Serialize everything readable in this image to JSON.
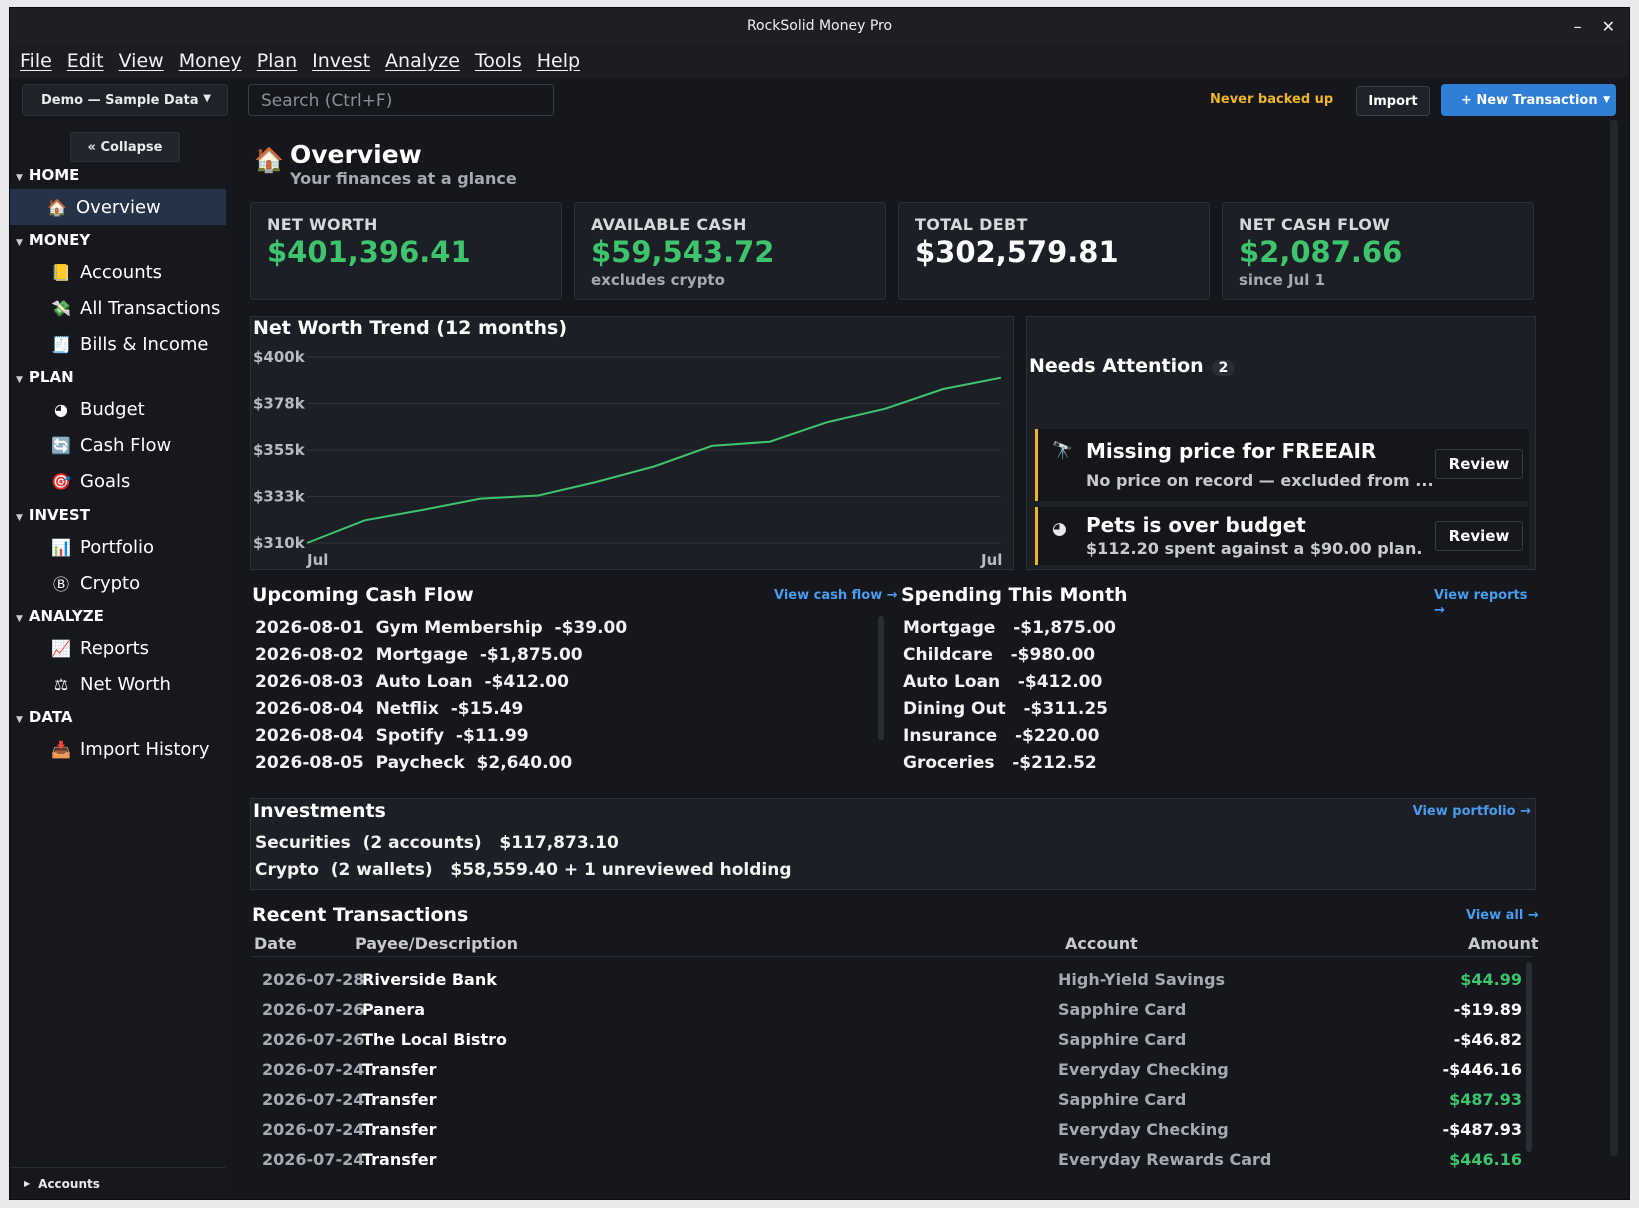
{
  "window": {
    "title": "RockSolid Money Pro",
    "minimize": "–",
    "close": "✕"
  },
  "menu": [
    "File",
    "Edit",
    "View",
    "Money",
    "Plan",
    "Invest",
    "Analyze",
    "Tools",
    "Help"
  ],
  "toolbar": {
    "profile": "Demo — Sample Data",
    "search_placeholder": "Search  (Ctrl+F)",
    "backup_status": "Never backed up",
    "import_label": "Import",
    "new_transaction_label": "+ New Transaction"
  },
  "sidebar": {
    "collapse_label": "«  Collapse",
    "sections": {
      "home": "HOME",
      "money": "MONEY",
      "plan": "PLAN",
      "invest": "INVEST",
      "analyze": "ANALYZE",
      "data": "DATA"
    },
    "items": {
      "overview": "Overview",
      "accounts": "Accounts",
      "all_transactions": "All Transactions",
      "bills_income": "Bills & Income",
      "budget": "Budget",
      "cash_flow": "Cash Flow",
      "goals": "Goals",
      "portfolio": "Portfolio",
      "crypto": "Crypto",
      "reports": "Reports",
      "net_worth": "Net Worth",
      "import_history": "Import History"
    },
    "footer": "Accounts"
  },
  "header": {
    "title": "Overview",
    "subtitle": "Your finances at a glance"
  },
  "kpis": [
    {
      "label": "NET WORTH",
      "value": "$401,396.41",
      "sub": ""
    },
    {
      "label": "AVAILABLE CASH",
      "value": "$59,543.72",
      "sub": "excludes crypto"
    },
    {
      "label": "TOTAL DEBT",
      "value": "$302,579.81",
      "sub": ""
    },
    {
      "label": "NET CASH FLOW",
      "value": "$2,087.66",
      "sub": "since Jul 1"
    }
  ],
  "chart_data": {
    "type": "line",
    "title": "Net Worth Trend (12 months)",
    "y_ticks": [
      "$400k",
      "$378k",
      "$355k",
      "$333k",
      "$310k"
    ],
    "x_ticks": [
      "Jul",
      "Jul"
    ],
    "ylim": [
      310000,
      400000
    ],
    "series": [
      {
        "values": [
          310000,
          321000,
          326000,
          331500,
          333000,
          339500,
          347000,
          357000,
          359000,
          368500,
          375000,
          384500,
          390000
        ]
      }
    ],
    "color": "#3ec46d"
  },
  "attention": {
    "title": "Needs Attention",
    "count": "2",
    "alerts": [
      {
        "title": "Missing price for FREEAIR",
        "desc": "No price on record — excluded from ...",
        "action": "Review"
      },
      {
        "title": "Pets is over budget",
        "desc": "$112.20 spent against a $90.00 plan.",
        "action": "Review"
      }
    ]
  },
  "upcoming": {
    "title": "Upcoming Cash Flow",
    "link": "View cash flow →",
    "rows": [
      "2026-08-01  Gym Membership  -$39.00",
      "2026-08-02  Mortgage  -$1,875.00",
      "2026-08-03  Auto Loan  -$412.00",
      "2026-08-04  Netflix  -$15.49",
      "2026-08-04  Spotify  -$11.99",
      "2026-08-05  Paycheck  $2,640.00"
    ]
  },
  "spending": {
    "title": "Spending This Month",
    "link": "View reports →",
    "rows": [
      "Mortgage   -$1,875.00",
      "Childcare   -$980.00",
      "Auto Loan   -$412.00",
      "Dining Out   -$311.25",
      "Insurance   -$220.00",
      "Groceries   -$212.52"
    ]
  },
  "investments": {
    "title": "Investments",
    "link": "View portfolio →",
    "securities": "Securities  (2 accounts)   $117,873.10",
    "crypto": "Crypto  (2 wallets)   $58,559.40 + 1 unreviewed holding"
  },
  "recent": {
    "title": "Recent Transactions",
    "link": "View all →",
    "headers": {
      "date": "Date",
      "payee": "Payee/Description",
      "account": "Account",
      "amount": "Amount"
    },
    "rows": [
      {
        "date": "2026-07-28",
        "payee": "Riverside Bank",
        "account": "High-Yield Savings",
        "amount": "$44.99",
        "positive": true
      },
      {
        "date": "2026-07-26",
        "payee": "Panera",
        "account": "Sapphire Card",
        "amount": "-$19.89",
        "positive": false
      },
      {
        "date": "2026-07-26",
        "payee": "The Local Bistro",
        "account": "Sapphire Card",
        "amount": "-$46.82",
        "positive": false
      },
      {
        "date": "2026-07-24",
        "payee": "Transfer",
        "account": "Everyday Checking",
        "amount": "-$446.16",
        "positive": false
      },
      {
        "date": "2026-07-24",
        "payee": "Transfer",
        "account": "Sapphire Card",
        "amount": "$487.93",
        "positive": true
      },
      {
        "date": "2026-07-24",
        "payee": "Transfer",
        "account": "Everyday Checking",
        "amount": "-$487.93",
        "positive": false
      },
      {
        "date": "2026-07-24",
        "payee": "Transfer",
        "account": "Everyday Rewards Card",
        "amount": "$446.16",
        "positive": true
      }
    ]
  },
  "colors": {
    "accent": "#2f7fd9",
    "positive": "#3ec46d",
    "warning": "#f0b429",
    "link": "#4a9cf0"
  }
}
